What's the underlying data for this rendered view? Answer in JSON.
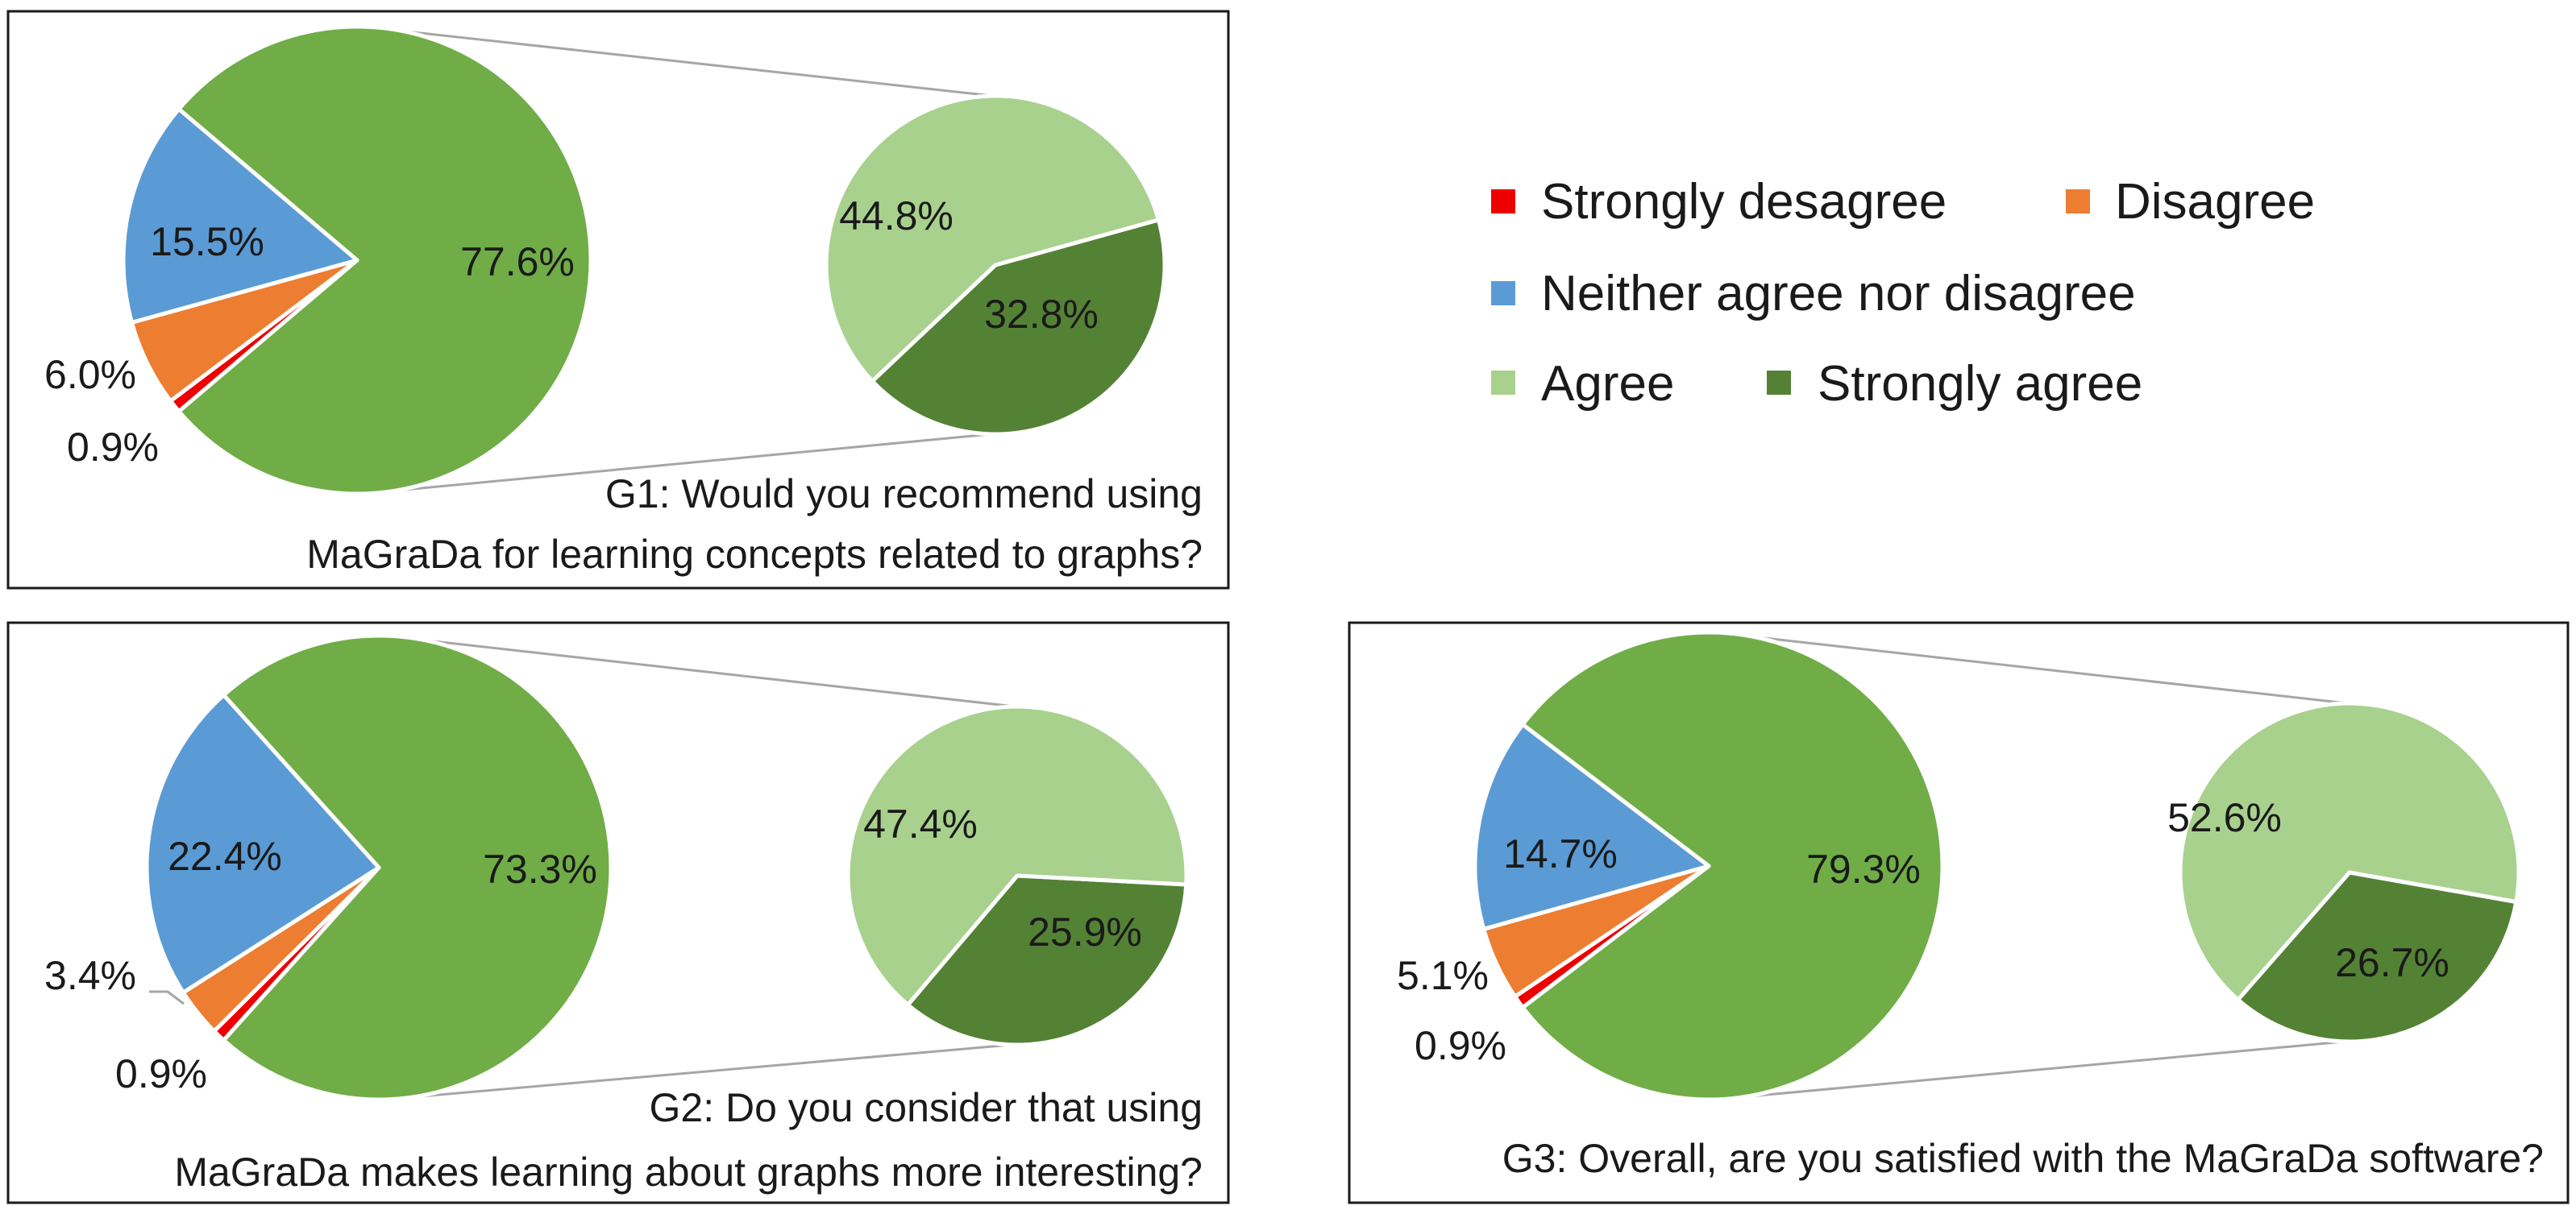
{
  "legend": {
    "strongly_disagree": "Strongly desagree",
    "disagree": "Disagree",
    "neutral": "Neither agree nor disagree",
    "agree": "Agree",
    "strongly_agree": "Strongly agree"
  },
  "colors": {
    "strongly_disagree": "#ee0000",
    "disagree": "#ed7d31",
    "neutral": "#5b9bd5",
    "agree_combined": "#70ad47",
    "agree": "#a9d18e",
    "strongly_agree": "#548235",
    "connector": "#a6a6a6"
  },
  "chart_data": [
    {
      "type": "pie",
      "id": "G1",
      "question_line1": "G1: Would you recommend using",
      "question_line2": "MaGraDa for learning concepts related to graphs?",
      "main_slices": [
        {
          "key": "agree_combined",
          "value": 77.6,
          "label": "77.6%"
        },
        {
          "key": "strongly_disagree",
          "value": 0.9,
          "label": "0.9%"
        },
        {
          "key": "disagree",
          "value": 6.0,
          "label": "6.0%"
        },
        {
          "key": "neutral",
          "value": 15.5,
          "label": "15.5%"
        }
      ],
      "sub_slices": [
        {
          "key": "agree",
          "value": 44.8,
          "label": "44.8%"
        },
        {
          "key": "strongly_agree",
          "value": 32.8,
          "label": "32.8%"
        }
      ]
    },
    {
      "type": "pie",
      "id": "G2",
      "question_line1": "G2: Do you consider that using",
      "question_line2": "MaGraDa makes learning about graphs more interesting?",
      "main_slices": [
        {
          "key": "agree_combined",
          "value": 73.3,
          "label": "73.3%"
        },
        {
          "key": "strongly_disagree",
          "value": 0.9,
          "label": "0.9%"
        },
        {
          "key": "disagree",
          "value": 3.4,
          "label": "3.4%"
        },
        {
          "key": "neutral",
          "value": 22.4,
          "label": "22.4%"
        }
      ],
      "sub_slices": [
        {
          "key": "agree",
          "value": 47.4,
          "label": "47.4%"
        },
        {
          "key": "strongly_agree",
          "value": 25.9,
          "label": "25.9%"
        }
      ]
    },
    {
      "type": "pie",
      "id": "G3",
      "question_line1": "G3: Overall, are you satisfied with the MaGraDa software?",
      "main_slices": [
        {
          "key": "agree_combined",
          "value": 79.3,
          "label": "79.3%"
        },
        {
          "key": "strongly_disagree",
          "value": 0.9,
          "label": "0.9%"
        },
        {
          "key": "disagree",
          "value": 5.1,
          "label": "5.1%"
        },
        {
          "key": "neutral",
          "value": 14.7,
          "label": "14.7%"
        }
      ],
      "sub_slices": [
        {
          "key": "agree",
          "value": 52.6,
          "label": "52.6%"
        },
        {
          "key": "strongly_agree",
          "value": 26.7,
          "label": "26.7%"
        }
      ]
    }
  ]
}
